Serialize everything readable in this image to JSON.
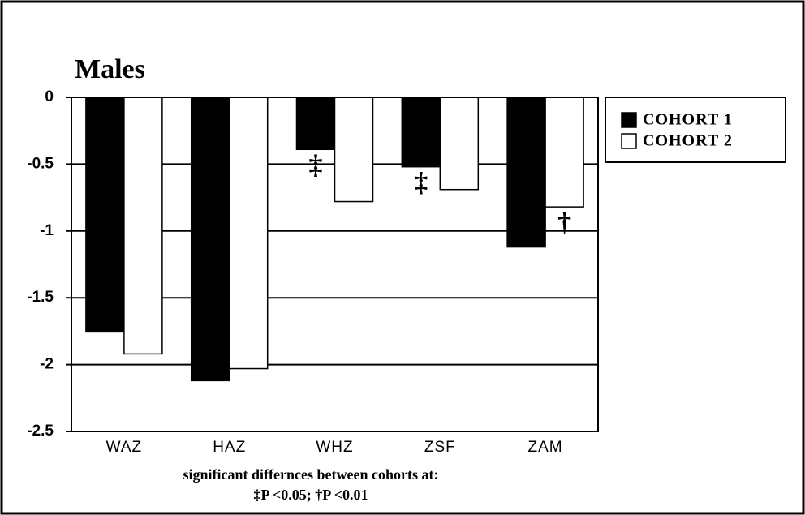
{
  "chart_data": {
    "type": "bar",
    "title": "Males",
    "categories": [
      "WAZ",
      "HAZ",
      "WHZ",
      "ZSF",
      "ZAM"
    ],
    "series": [
      {
        "name": "COHORT 1",
        "color": "#000000",
        "values": [
          -1.75,
          -2.12,
          -0.39,
          -0.52,
          -1.12
        ]
      },
      {
        "name": "COHORT 2",
        "color": "#ffffff",
        "values": [
          -1.92,
          -2.03,
          -0.78,
          -0.69,
          -0.82
        ]
      }
    ],
    "ylim": [
      -2.5,
      0
    ],
    "yticks": [
      0,
      -0.5,
      -1,
      -1.5,
      -2,
      -2.5
    ],
    "grid": true,
    "legend": "right",
    "annotations": [
      "‡",
      "‡",
      "†"
    ],
    "footnote": [
      "significant differnces between cohorts at:",
      "‡P <0.05; †P <0.01"
    ]
  }
}
